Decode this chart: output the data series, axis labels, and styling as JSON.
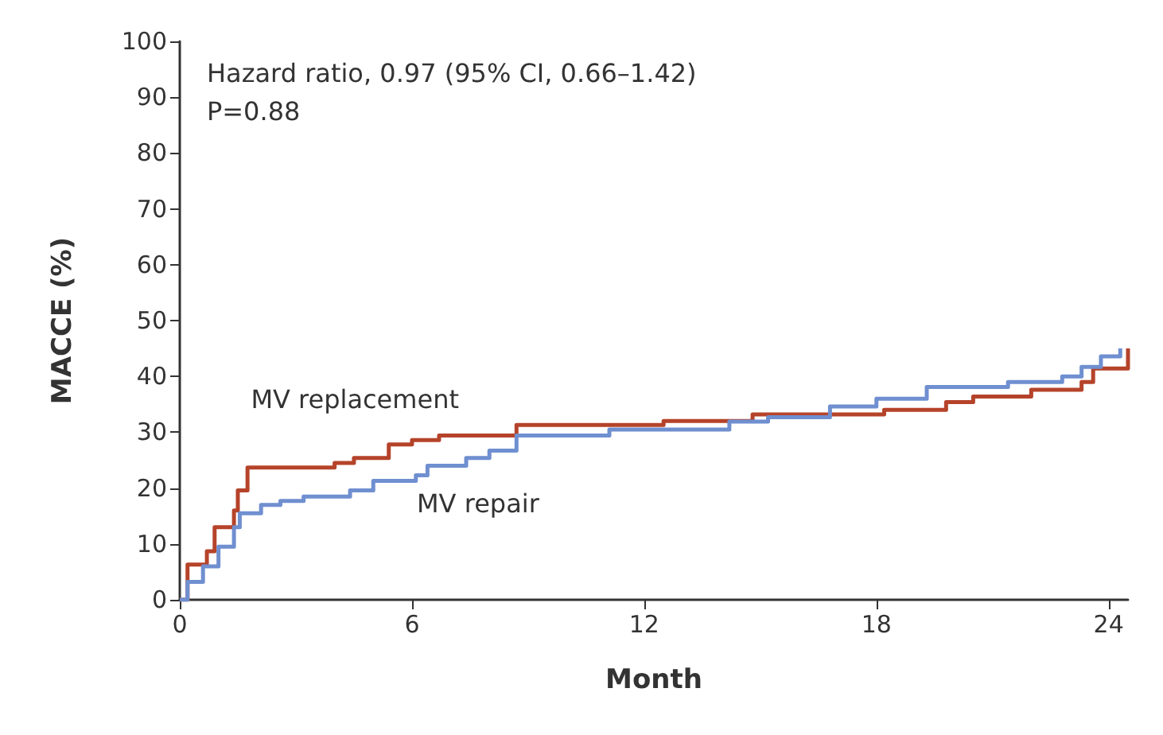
{
  "chart_data": {
    "type": "step",
    "xlabel": "Month",
    "ylabel": "MACCE (%)",
    "annotations": [
      "Hazard ratio, 0.97 (95% CI, 0.66–1.42)",
      "P=0.88"
    ],
    "xlim": [
      0,
      24.5
    ],
    "xticks": [
      0,
      6,
      12,
      18,
      24
    ],
    "ylim": [
      0,
      100
    ],
    "yticks": [
      0,
      10,
      20,
      30,
      40,
      50,
      60,
      70,
      80,
      90,
      100
    ],
    "grid": false,
    "legend": false,
    "marker": "none",
    "line_style": "solid",
    "series": [
      {
        "name": "MV replacement",
        "color": "#b5432a",
        "x": [
          0,
          0.2,
          0.7,
          0.9,
          1.4,
          1.5,
          1.75,
          4.0,
          4.5,
          5.4,
          6.0,
          6.7,
          8.7,
          12.5,
          14.8,
          18.2,
          19.8,
          20.5,
          22.0,
          23.3,
          23.6,
          24.5
        ],
        "values": [
          0,
          6.3,
          8.7,
          13,
          16,
          19.6,
          23.7,
          24.5,
          25.4,
          27.8,
          28.6,
          29.4,
          31.3,
          32,
          33.2,
          34,
          35.4,
          36.4,
          37.6,
          39,
          41.4,
          45
        ]
      },
      {
        "name": "MV repair",
        "color": "#6f8fd0",
        "x": [
          0,
          0.2,
          0.6,
          1.0,
          1.4,
          1.55,
          2.1,
          2.6,
          3.2,
          4.4,
          5.0,
          6.1,
          6.4,
          7.4,
          8.0,
          8.7,
          11.1,
          14.2,
          15.2,
          16.8,
          18.0,
          19.3,
          21.4,
          22.8,
          23.3,
          23.8,
          24.3
        ],
        "values": [
          0,
          3.2,
          6,
          9.5,
          13,
          15.5,
          17,
          17.7,
          18.5,
          19.6,
          21.3,
          22.3,
          24,
          25.4,
          26.7,
          29.4,
          30.5,
          31.9,
          32.7,
          34.6,
          36,
          38.1,
          39,
          40,
          41.7,
          43.6,
          45
        ]
      }
    ]
  }
}
